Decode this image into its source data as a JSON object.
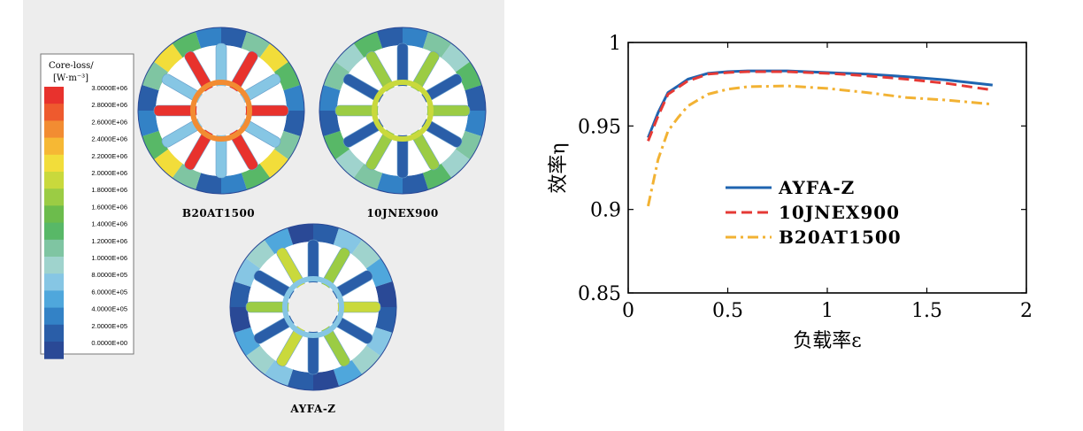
{
  "colorbar": {
    "title_line1": "Core-loss/",
    "title_line2": "[W·m⁻³]",
    "ticks": [
      "3.0000E+06",
      "2.8000E+06",
      "2.6000E+06",
      "2.4000E+06",
      "2.2000E+06",
      "2.0000E+06",
      "1.8000E+06",
      "1.6000E+06",
      "1.4000E+06",
      "1.2000E+06",
      "1.0000E+06",
      "8.0000E+05",
      "6.0000E+05",
      "4.0000E+05",
      "2.0000E+05",
      "0.0000E+00"
    ],
    "colors": [
      "#e8322d",
      "#ee5a2e",
      "#f28c32",
      "#f6b834",
      "#f2dd3a",
      "#c9d93c",
      "#9bcc44",
      "#6cbc4c",
      "#58b867",
      "#7fc5a2",
      "#9fd3cd",
      "#86c6e4",
      "#4fa7dc",
      "#3382c6",
      "#2a5ea8",
      "#2a4996"
    ]
  },
  "rotors": [
    {
      "label": "B20AT1500",
      "heat": "high"
    },
    {
      "label": "10JNEX900",
      "heat": "medium"
    },
    {
      "label": "AYFA-Z",
      "heat": "low"
    }
  ],
  "chart_data": {
    "type": "line",
    "xlabel": "负载率ε",
    "ylabel": "效率η",
    "xlim": [
      0,
      2
    ],
    "ylim": [
      0.85,
      1
    ],
    "xticks": [
      "0",
      "0.5",
      "1",
      "1.5",
      "2"
    ],
    "yticks": [
      "0.85",
      "0.9",
      "0.95",
      "1"
    ],
    "legend_position": "center",
    "series": [
      {
        "name": "AYFA-Z",
        "color": "#1f64b0",
        "style": "solid",
        "x": [
          0.1,
          0.15,
          0.2,
          0.25,
          0.3,
          0.4,
          0.5,
          0.6,
          0.8,
          1.0,
          1.2,
          1.4,
          1.6,
          1.83
        ],
        "y": [
          0.943,
          0.958,
          0.97,
          0.974,
          0.978,
          0.9815,
          0.9825,
          0.983,
          0.983,
          0.982,
          0.981,
          0.9795,
          0.9775,
          0.9745
        ]
      },
      {
        "name": "10JNEX900",
        "color": "#e53935",
        "style": "dashed",
        "x": [
          0.1,
          0.15,
          0.2,
          0.25,
          0.3,
          0.4,
          0.5,
          0.6,
          0.8,
          1.0,
          1.2,
          1.4,
          1.6,
          1.83
        ],
        "y": [
          0.941,
          0.956,
          0.969,
          0.973,
          0.977,
          0.981,
          0.982,
          0.9825,
          0.9825,
          0.9815,
          0.98,
          0.978,
          0.9755,
          0.9715
        ]
      },
      {
        "name": "B20AT1500",
        "color": "#f2b233",
        "style": "dashdot",
        "x": [
          0.1,
          0.15,
          0.2,
          0.25,
          0.3,
          0.4,
          0.5,
          0.6,
          0.8,
          1.0,
          1.2,
          1.4,
          1.6,
          1.83
        ],
        "y": [
          0.902,
          0.93,
          0.947,
          0.955,
          0.962,
          0.969,
          0.972,
          0.9735,
          0.974,
          0.9725,
          0.97,
          0.967,
          0.9655,
          0.963
        ]
      }
    ]
  }
}
